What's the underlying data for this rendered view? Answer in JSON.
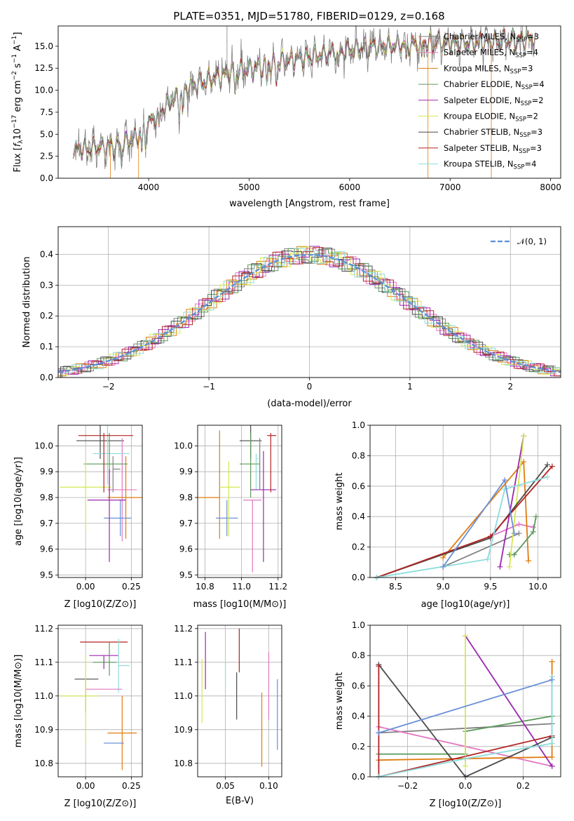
{
  "figure": {
    "title": "PLATE=0351, MJD=51780, FIBERID=0129, z=0.168"
  },
  "colors": {
    "Chabrier MILES": "#808080",
    "Salpeter MILES": "#e377c2",
    "Kroupa MILES": "#e07b0f",
    "Chabrier ELODIE": "#5a9a5a",
    "Salpeter ELODIE": "#9b27b0",
    "Kroupa ELODIE": "#d4e84f",
    "Chabrier STELIB": "#4a4a4a",
    "Salpeter STELIB": "#b22222",
    "Kroupa STELIB": "#8ddcdc",
    "Kroupa MILES x": "#6a8fd8",
    "gaussian": "#5b8fd6"
  },
  "chart_data": [
    {
      "type": "line",
      "id": "spectrum",
      "title": "PLATE=0351, MJD=51780, FIBERID=0129, z=0.168",
      "xlabel": "wavelength [Angstrom, rest frame]",
      "ylabel": "Flux [f_λ 10^-17 erg cm^-2 s^-1 A^-1]",
      "xlim": [
        3100,
        8100
      ],
      "ylim": [
        0,
        17.3
      ],
      "xticks": [
        4000,
        5000,
        6000,
        7000,
        8000
      ],
      "yticks": [
        0.0,
        2.5,
        5.0,
        7.5,
        10.0,
        12.5,
        15.0
      ],
      "legend_position": "right",
      "continuum": {
        "x": [
          3250,
          3500,
          3700,
          3900,
          4000,
          4200,
          4400,
          4600,
          4800,
          5000,
          5200,
          5400,
          5600,
          5800,
          6000,
          6300,
          6600,
          6800,
          7000,
          7200,
          7400,
          7600,
          7850
        ],
        "y": [
          3.3,
          3.5,
          3.7,
          4.8,
          6.2,
          8.5,
          10.3,
          11.2,
          11.9,
          12.4,
          12.9,
          13.4,
          13.8,
          14.2,
          14.6,
          15.0,
          15.2,
          15.3,
          15.4,
          15.4,
          15.5,
          15.6,
          15.8
        ]
      },
      "series": [
        {
          "name": "Chabrier MILES",
          "nssp": 3
        },
        {
          "name": "Salpeter MILES",
          "nssp": 4
        },
        {
          "name": "Kroupa MILES",
          "nssp": 3
        },
        {
          "name": "Chabrier ELODIE",
          "nssp": 4
        },
        {
          "name": "Salpeter ELODIE",
          "nssp": 2
        },
        {
          "name": "Kroupa ELODIE",
          "nssp": 2
        },
        {
          "name": "Chabrier STELIB",
          "nssp": 3
        },
        {
          "name": "Salpeter STELIB",
          "nssp": 3
        },
        {
          "name": "Kroupa STELIB",
          "nssp": 4
        }
      ],
      "legend_entries": [
        "Chabrier MILES, N_SSP=3",
        "Salpeter MILES, N_SSP=4",
        "Kroupa MILES, N_SSP=3",
        "Chabrier ELODIE, N_SSP=4",
        "Salpeter ELODIE, N_SSP=2",
        "Kroupa ELODIE, N_SSP=2",
        "Chabrier STELIB, N_SSP=3",
        "Salpeter STELIB, N_SSP=3",
        "Kroupa STELIB, N_SSP=4"
      ]
    },
    {
      "type": "histogram",
      "id": "residuals",
      "xlabel": "(data-model)/error",
      "ylabel": "Normed distribution",
      "xlim": [
        -2.5,
        2.5
      ],
      "ylim": [
        0,
        0.49
      ],
      "xticks": [
        -2,
        -1,
        0,
        1,
        2
      ],
      "yticks": [
        0.0,
        0.1,
        0.2,
        0.3,
        0.4
      ],
      "bin_width": 0.1,
      "legend_entries": [
        "𝒩(0, 1)"
      ],
      "legend_position": "top-right",
      "note": "nine normalized residual histograms, one per model, following N(0,1)"
    },
    {
      "type": "scatter",
      "id": "age_vs_Z",
      "xlabel": "Z [log10(Z/Z⊙)]",
      "ylabel": "age  [log10(age/yr)]",
      "xlim": [
        -0.15,
        0.31
      ],
      "ylim": [
        9.49,
        10.08
      ],
      "xticks": [
        0.0,
        0.25
      ],
      "yticks": [
        9.5,
        9.6,
        9.7,
        9.8,
        9.9,
        10.0
      ],
      "points": [
        {
          "x": 0.08,
          "y": 10.02,
          "xerr": [
            0.13,
            0.13
          ],
          "yerr": [
            0.07,
            0.07
          ],
          "series": "Chabrier STELIB"
        },
        {
          "x": 0.2,
          "y": 9.83,
          "xerr": [
            0.08,
            0.08
          ],
          "yerr": [
            0.2,
            0.2
          ],
          "series": "Salpeter MILES"
        },
        {
          "x": 0.22,
          "y": 9.8,
          "xerr": [
            0.1,
            0.1
          ],
          "yerr": [
            0.16,
            0.16
          ],
          "series": "Kroupa MILES"
        },
        {
          "x": 0.12,
          "y": 9.97,
          "xerr": [
            0.08,
            0.12
          ],
          "yerr": [
            0.12,
            0.13
          ],
          "series": "Kroupa STELIB"
        },
        {
          "x": 0.13,
          "y": 9.93,
          "xerr": [
            0.14,
            0.1
          ],
          "yerr": [
            0.13,
            0.12
          ],
          "series": "Chabrier ELODIE"
        },
        {
          "x": 0.19,
          "y": 9.72,
          "xerr": [
            0.09,
            0.06
          ],
          "yerr": [
            0.07,
            0.07
          ],
          "series": "Kroupa MILES x"
        },
        {
          "x": 0.0,
          "y": 9.84,
          "xerr": [
            0.14,
            0.14
          ],
          "yerr": [
            0.17,
            0.1
          ],
          "series": "Kroupa ELODIE"
        },
        {
          "x": 0.13,
          "y": 9.79,
          "xerr": [
            0.12,
            0.09
          ],
          "yerr": [
            0.24,
            0.12
          ],
          "series": "Salpeter ELODIE"
        },
        {
          "x": 0.1,
          "y": 10.04,
          "xerr": [
            0.14,
            0.16
          ],
          "yerr": [
            0.22,
            0.01
          ],
          "series": "Salpeter STELIB"
        },
        {
          "x": 0.15,
          "y": 9.91,
          "xerr": [
            0.0,
            0.04
          ],
          "yerr": [
            0.09,
            0.05
          ],
          "series": "Chabrier MILES"
        }
      ]
    },
    {
      "type": "scatter",
      "id": "age_vs_mass",
      "xlabel": "mass [log10(M/M⊙)]",
      "ylabel": "",
      "xlim": [
        10.76,
        11.22
      ],
      "ylim": [
        9.49,
        10.08
      ],
      "xticks": [
        10.8,
        11.0,
        11.2
      ],
      "yticks": [
        9.5,
        9.6,
        9.7,
        9.8,
        9.9,
        10.0
      ],
      "points": [
        {
          "x": 11.05,
          "y": 10.02,
          "xerr": [
            0.06,
            0.06
          ],
          "yerr": [
            0.07,
            0.07
          ],
          "series": "Chabrier STELIB"
        },
        {
          "x": 11.06,
          "y": 9.79,
          "xerr": [
            0.05,
            0.05
          ],
          "yerr": [
            0.28,
            0.0
          ],
          "series": "Salpeter MILES"
        },
        {
          "x": 10.88,
          "y": 9.8,
          "xerr": [
            0.12,
            0.0
          ],
          "yerr": [
            0.16,
            0.26
          ],
          "series": "Kroupa MILES"
        },
        {
          "x": 11.08,
          "y": 9.95,
          "xerr": [
            0.0,
            0.01
          ],
          "yerr": [
            0.12,
            0.02
          ],
          "series": "Kroupa STELIB"
        },
        {
          "x": 11.05,
          "y": 9.93,
          "xerr": [
            0.06,
            0.05
          ],
          "yerr": [
            0.13,
            0.12
          ],
          "series": "Chabrier ELODIE"
        },
        {
          "x": 10.92,
          "y": 9.72,
          "xerr": [
            0.06,
            0.06
          ],
          "yerr": [
            0.07,
            0.07
          ],
          "series": "Kroupa MILES x"
        },
        {
          "x": 10.93,
          "y": 9.84,
          "xerr": [
            0.05,
            0.06
          ],
          "yerr": [
            0.19,
            0.1
          ],
          "series": "Kroupa ELODIE"
        },
        {
          "x": 11.12,
          "y": 9.83,
          "xerr": [
            0.07,
            0.07
          ],
          "yerr": [
            0.28,
            0.15
          ],
          "series": "Salpeter ELODIE"
        },
        {
          "x": 11.16,
          "y": 10.04,
          "xerr": [
            0.02,
            0.03
          ],
          "yerr": [
            0.22,
            0.01
          ],
          "series": "Salpeter STELIB"
        },
        {
          "x": 11.1,
          "y": 9.96,
          "xerr": [
            0.0,
            0.0
          ],
          "yerr": [
            0.13,
            0.07
          ],
          "series": "Chabrier MILES"
        }
      ]
    },
    {
      "type": "line",
      "id": "weight_vs_age",
      "xlabel": "age  [log10(age/yr)]",
      "ylabel": "mass weight",
      "xlim": [
        8.23,
        10.24
      ],
      "ylim": [
        0,
        1.0
      ],
      "xticks": [
        8.5,
        9.0,
        9.5,
        10.0
      ],
      "yticks": [
        0.0,
        0.2,
        0.4,
        0.6,
        0.8,
        1.0
      ],
      "series": [
        {
          "name": "Chabrier MILES",
          "x": [
            9.0,
            9.8
          ],
          "y": [
            0.07,
            0.29
          ]
        },
        {
          "name": "Salpeter MILES",
          "x": [
            9.5,
            9.8,
            9.95
          ],
          "y": [
            0.27,
            0.35,
            0.33
          ]
        },
        {
          "name": "Kroupa MILES",
          "x": [
            9.0,
            9.85,
            9.9
          ],
          "y": [
            0.13,
            0.76,
            0.11
          ]
        },
        {
          "name": "Chabrier ELODIE",
          "x": [
            9.7,
            9.75,
            9.95,
            9.98
          ],
          "y": [
            0.15,
            0.15,
            0.3,
            0.4
          ]
        },
        {
          "name": "Salpeter ELODIE",
          "x": [
            9.6,
            9.85
          ],
          "y": [
            0.07,
            0.93
          ]
        },
        {
          "name": "Kroupa ELODIE",
          "x": [
            9.7,
            9.85
          ],
          "y": [
            0.07,
            0.93
          ]
        },
        {
          "name": "Chabrier STELIB",
          "x": [
            8.3,
            9.5,
            10.1
          ],
          "y": [
            0.0,
            0.26,
            0.74
          ]
        },
        {
          "name": "Salpeter STELIB",
          "x": [
            8.3,
            9.5,
            10.15
          ],
          "y": [
            0.0,
            0.27,
            0.73
          ]
        },
        {
          "name": "Kroupa STELIB",
          "x": [
            8.3,
            9.47,
            9.65,
            10.1
          ],
          "y": [
            0.0,
            0.12,
            0.58,
            0.66
          ]
        },
        {
          "name": "Kroupa MILES x",
          "x": [
            9.0,
            9.65,
            9.75
          ],
          "y": [
            0.07,
            0.64,
            0.29
          ]
        }
      ]
    },
    {
      "type": "scatter",
      "id": "mass_vs_Z",
      "xlabel": "Z [log10(Z/Z⊙)]",
      "ylabel": "mass [log10(M/M⊙)]",
      "xlim": [
        -0.15,
        0.31
      ],
      "ylim": [
        10.76,
        11.21
      ],
      "xticks": [
        0.0,
        0.25
      ],
      "yticks": [
        10.8,
        10.9,
        11.0,
        11.1,
        11.2
      ],
      "points": [
        {
          "x": 0.1,
          "y": 11.16,
          "xerr": [
            0.13,
            0.13
          ],
          "yerr": [
            0.0,
            0.0
          ],
          "series": "Salpeter STELIB"
        },
        {
          "x": 0.1,
          "y": 11.12,
          "xerr": [
            0.08,
            0.08
          ],
          "yerr": [
            0.04,
            0.0
          ],
          "series": "Salpeter ELODIE"
        },
        {
          "x": 0.13,
          "y": 11.1,
          "xerr": [
            0.09,
            0.04
          ],
          "yerr": [
            0.04,
            0.06
          ],
          "series": "Chabrier ELODIE"
        },
        {
          "x": 0.18,
          "y": 11.09,
          "xerr": [
            0.0,
            0.06
          ],
          "yerr": [
            0.08,
            0.08
          ],
          "series": "Kroupa STELIB"
        },
        {
          "x": 0.0,
          "y": 11.05,
          "xerr": [
            0.06,
            0.07
          ],
          "yerr": [
            0.1,
            0.0
          ],
          "series": "Chabrier STELIB"
        },
        {
          "x": 0.1,
          "y": 11.02,
          "xerr": [
            0.1,
            0.1
          ],
          "yerr": [
            0.0,
            0.0
          ],
          "series": "Salpeter MILES"
        },
        {
          "x": 0.0,
          "y": 11.0,
          "xerr": [
            0.14,
            0.07
          ],
          "yerr": [
            0.14,
            0.12
          ],
          "series": "Kroupa ELODIE"
        },
        {
          "x": 0.2,
          "y": 10.89,
          "xerr": [
            0.08,
            0.08
          ],
          "yerr": [
            0.11,
            0.11
          ],
          "series": "Kroupa MILES"
        },
        {
          "x": 0.18,
          "y": 10.86,
          "xerr": [
            0.08,
            0.03
          ],
          "yerr": [
            0.0,
            0.0
          ],
          "series": "Kroupa MILES x"
        }
      ]
    },
    {
      "type": "scatter",
      "id": "mass_vs_ebv",
      "xlabel": "E(B-V)",
      "ylabel": "",
      "xlim": [
        0.018,
        0.115
      ],
      "ylim": [
        10.76,
        11.21
      ],
      "xticks": [
        0.05,
        0.1
      ],
      "yticks": [
        10.8,
        10.9,
        11.0,
        11.1,
        11.2
      ],
      "points": [
        {
          "x": 0.023,
          "y": 11.02,
          "yerr": [
            0.1,
            0.09
          ],
          "series": "Kroupa ELODIE"
        },
        {
          "x": 0.027,
          "y": 11.11,
          "yerr": [
            0.09,
            0.08
          ],
          "series": "Salpeter ELODIE"
        },
        {
          "x": 0.05,
          "y": 11.07,
          "yerr": [
            0.04,
            0.04
          ],
          "series": "Kroupa STELIB"
        },
        {
          "x": 0.063,
          "y": 11.0,
          "yerr": [
            0.07,
            0.07
          ],
          "series": "Chabrier STELIB"
        },
        {
          "x": 0.066,
          "y": 11.12,
          "yerr": [
            0.05,
            0.08
          ],
          "series": "Salpeter STELIB"
        },
        {
          "x": 0.092,
          "y": 10.9,
          "yerr": [
            0.11,
            0.11
          ],
          "series": "Kroupa MILES"
        },
        {
          "x": 0.1,
          "y": 11.03,
          "yerr": [
            0.1,
            0.1
          ],
          "series": "Salpeter MILES"
        },
        {
          "x": 0.11,
          "y": 10.97,
          "yerr": [
            0.13,
            0.08
          ],
          "series": "Kroupa MILES x"
        }
      ]
    },
    {
      "type": "line",
      "id": "weight_vs_Z",
      "xlabel": "Z [log10(Z/Z⊙)]",
      "ylabel": "mass weight",
      "xlim": [
        -0.33,
        0.33
      ],
      "ylim": [
        0,
        1.0
      ],
      "xticks": [
        -0.2,
        0.0,
        0.2
      ],
      "yticks": [
        0.0,
        0.2,
        0.4,
        0.6,
        0.8,
        1.0
      ],
      "series": [
        {
          "name": "Chabrier MILES",
          "x": [
            -0.3,
            0.3
          ],
          "y": [
            0.29,
            0.35
          ]
        },
        {
          "name": "Salpeter MILES",
          "x": [
            -0.3,
            0.3
          ],
          "y": [
            0.33,
            0.07
          ]
        },
        {
          "name": "Kroupa MILES",
          "x": [
            -0.3,
            0.3,
            0.3
          ],
          "y": [
            0.11,
            0.13,
            0.76
          ]
        },
        {
          "name": "Chabrier ELODIE",
          "x": [
            -0.3,
            0.0,
            0.0,
            0.3
          ],
          "y": [
            0.15,
            0.15,
            0.3,
            0.4
          ]
        },
        {
          "name": "Salpeter ELODIE",
          "x": [
            0.0,
            0.3
          ],
          "y": [
            0.93,
            0.07
          ]
        },
        {
          "name": "Kroupa ELODIE",
          "x": [
            0.0,
            0.0
          ],
          "y": [
            0.07,
            0.93
          ]
        },
        {
          "name": "Chabrier STELIB",
          "x": [
            -0.3,
            0.0,
            0.3
          ],
          "y": [
            0.74,
            0.0,
            0.26
          ]
        },
        {
          "name": "Salpeter STELIB",
          "x": [
            -0.3,
            -0.3,
            0.3
          ],
          "y": [
            0.73,
            0.0,
            0.27
          ]
        },
        {
          "name": "Kroupa STELIB",
          "x": [
            -0.3,
            0.0,
            0.3,
            0.3
          ],
          "y": [
            0.0,
            0.12,
            0.22,
            0.66
          ]
        },
        {
          "name": "Kroupa MILES x",
          "x": [
            -0.3,
            0.3
          ],
          "y": [
            0.29,
            0.64
          ]
        }
      ]
    }
  ]
}
